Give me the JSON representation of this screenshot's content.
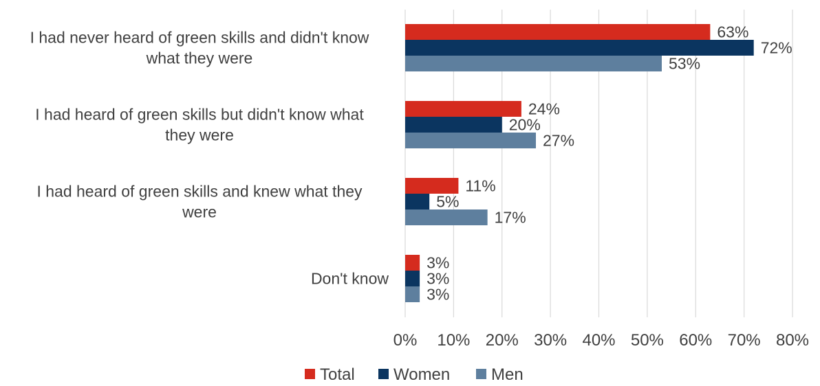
{
  "chart_data": {
    "type": "bar",
    "orientation": "horizontal",
    "title": "",
    "xlabel": "",
    "ylabel": "",
    "categories": [
      [
        "I had never heard of green skills and didn't know",
        "what they were"
      ],
      [
        "I had heard of green skills but didn't know what",
        "they were"
      ],
      [
        "I had heard of green skills and knew what they",
        "were"
      ],
      [
        "Don't know"
      ]
    ],
    "series": [
      {
        "name": "Total",
        "color": "#d52b1e",
        "values": [
          63,
          24,
          11,
          3
        ]
      },
      {
        "name": "Women",
        "color": "#0b3560",
        "values": [
          72,
          20,
          5,
          3
        ]
      },
      {
        "name": "Men",
        "color": "#5e7f9e",
        "values": [
          53,
          27,
          17,
          3
        ]
      }
    ],
    "value_suffix": "%",
    "xlim": [
      0,
      80
    ],
    "x_ticks": [
      "0%",
      "10%",
      "20%",
      "30%",
      "40%",
      "50%",
      "60%",
      "70%",
      "80%"
    ],
    "grid": true,
    "legend_position": "bottom"
  }
}
